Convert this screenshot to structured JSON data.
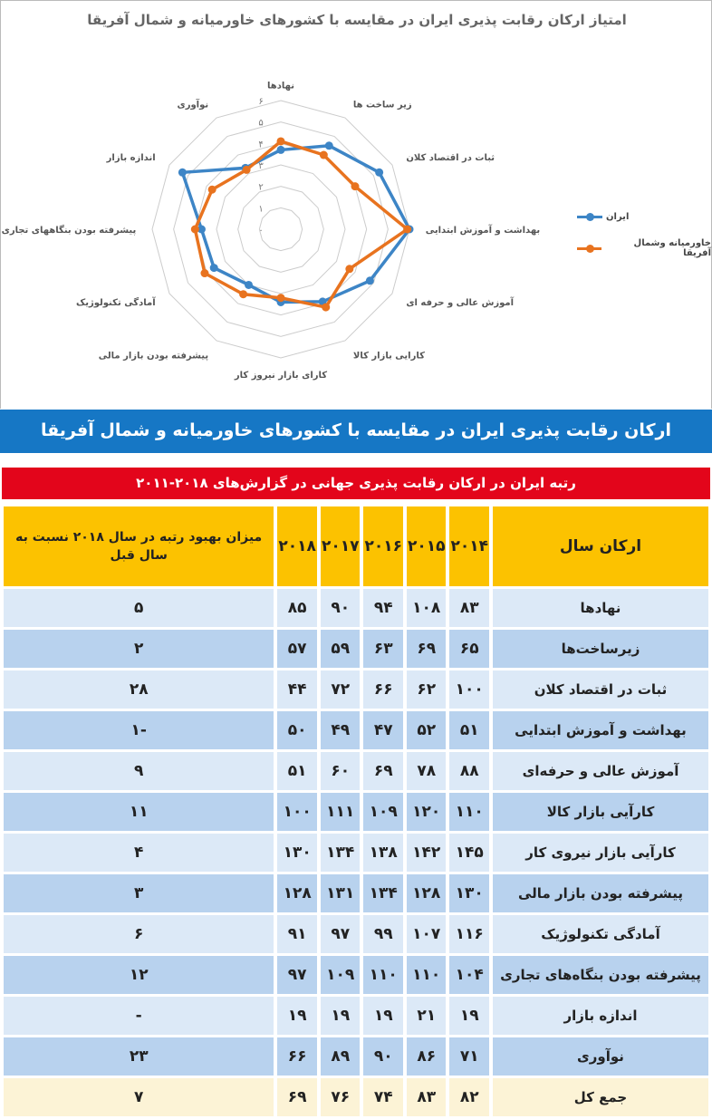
{
  "chart_data": {
    "type": "radar",
    "title": "امتیاز ارکان رقابت پذیری ایران در مقایسه با کشورهای خاورمیانه و شمال آفریقا",
    "categories": [
      "نهادها",
      "زیر ساخت ها",
      "ثبات در اقتصاد کلان",
      "بهداشت و آموزش ابتدایی",
      "آموزش عالی و حرفه ای",
      "کارایی بازار کالا",
      "کارای بازار نیروز کار",
      "پیشرفته بودن بازار مالی",
      "آمادگی تکنولوژیک",
      "پیشرفته بودن بنگاههای تجاری",
      "اندازه بازار",
      "نوآوری"
    ],
    "ticks": [
      "۰",
      "۱",
      "۲",
      "۳",
      "۴",
      "۵",
      "۶"
    ],
    "range": [
      0,
      6
    ],
    "legend_position": "right",
    "series": [
      {
        "name": "ایران",
        "color": "#3d85c6",
        "values": [
          3.7,
          4.5,
          5.3,
          6.0,
          4.8,
          3.9,
          3.4,
          3.0,
          3.6,
          3.7,
          5.3,
          3.3
        ]
      },
      {
        "name": "خاورمیانه وشمال آفریقا",
        "color": "#e8731f",
        "values": [
          4.1,
          4.0,
          4.0,
          5.9,
          3.7,
          4.2,
          3.2,
          3.5,
          4.1,
          4.0,
          3.7,
          3.2
        ]
      }
    ]
  },
  "banner": "ارکان رقابت پذیری ایران در مقایسه با کشورهای خاورمیانه و شمال آفریقا",
  "table": {
    "title": "رتبه ایران در ارکان رقابت پذیری جهانی در گزارش‌های ۲۰۱۸-۲۰۱۱",
    "headers": [
      "ارکان سال",
      "۲۰۱۴",
      "۲۰۱۵",
      "۲۰۱۶",
      "۲۰۱۷",
      "۲۰۱۸",
      "میزان بهبود رتبه در سال ۲۰۱۸ نسبت به سال قبل"
    ],
    "rows": [
      [
        "نهادها",
        "۸۳",
        "۱۰۸",
        "۹۴",
        "۹۰",
        "۸۵",
        "۵"
      ],
      [
        "زیرساخت‌ها",
        "۶۵",
        "۶۹",
        "۶۳",
        "۵۹",
        "۵۷",
        "۲"
      ],
      [
        "ثبات در اقتصاد کلان",
        "۱۰۰",
        "۶۲",
        "۶۶",
        "۷۲",
        "۴۴",
        "۲۸"
      ],
      [
        "بهداشت و آموزش ابتدایی",
        "۵۱",
        "۵۲",
        "۴۷",
        "۴۹",
        "۵۰",
        "-۱"
      ],
      [
        "آموزش عالی و حرفه‌ای",
        "۸۸",
        "۷۸",
        "۶۹",
        "۶۰",
        "۵۱",
        "۹"
      ],
      [
        "کارآیی بازار کالا",
        "۱۱۰",
        "۱۲۰",
        "۱۰۹",
        "۱۱۱",
        "۱۰۰",
        "۱۱"
      ],
      [
        "کارآیی بازار نیروی کار",
        "۱۴۵",
        "۱۴۲",
        "۱۳۸",
        "۱۳۴",
        "۱۳۰",
        "۴"
      ],
      [
        "پیشرفته بودن بازار مالی",
        "۱۳۰",
        "۱۲۸",
        "۱۳۴",
        "۱۳۱",
        "۱۲۸",
        "۳"
      ],
      [
        "آمادگی تکنولوژیک",
        "۱۱۶",
        "۱۰۷",
        "۹۹",
        "۹۷",
        "۹۱",
        "۶"
      ],
      [
        "پیشرفته بودن بنگاه‌های تجاری",
        "۱۰۴",
        "۱۱۰",
        "۱۱۰",
        "۱۰۹",
        "۹۷",
        "۱۲"
      ],
      [
        "اندازه بازار",
        "۱۹",
        "۲۱",
        "۱۹",
        "۱۹",
        "۱۹",
        "-"
      ],
      [
        "نوآوری",
        "۷۱",
        "۸۶",
        "۹۰",
        "۸۹",
        "۶۶",
        "۲۳"
      ],
      [
        "جمع کل",
        "۸۲",
        "۸۳",
        "۷۴",
        "۷۶",
        "۶۹",
        "۷"
      ]
    ]
  }
}
